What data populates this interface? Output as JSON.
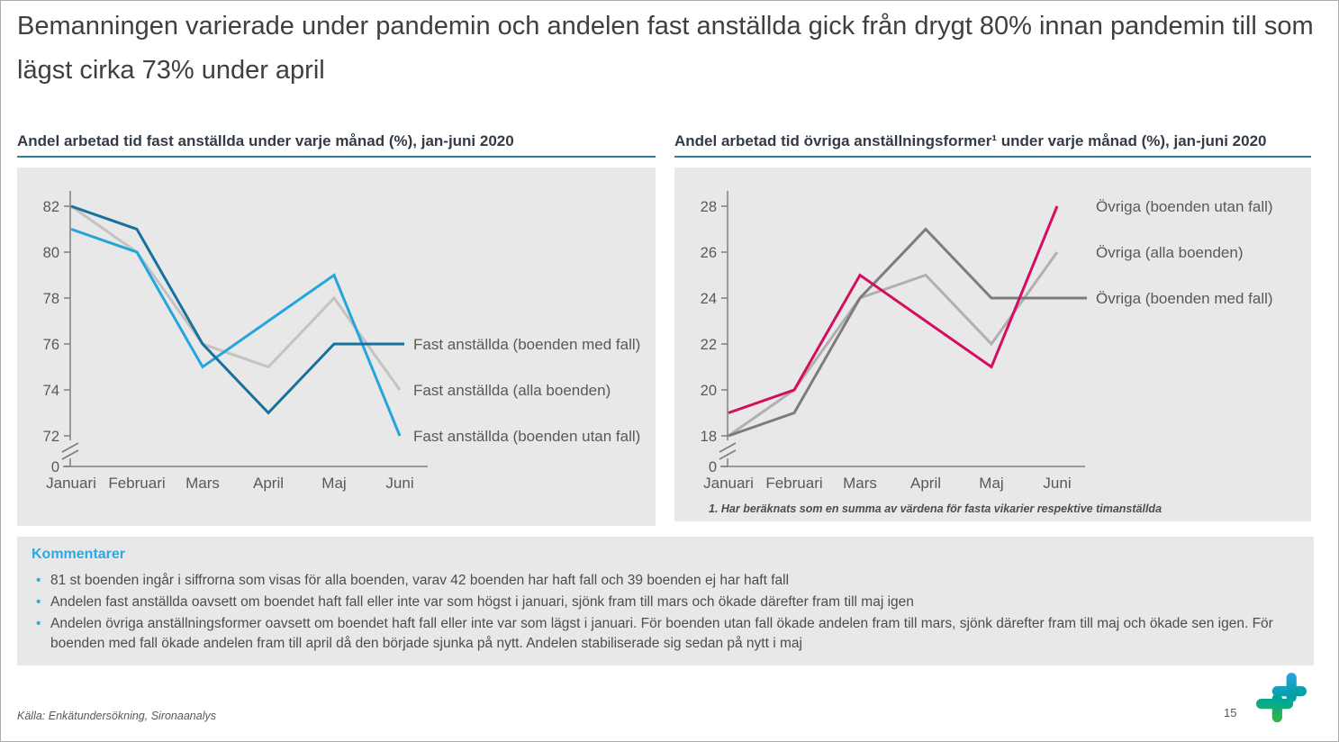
{
  "slide": {
    "title": "Bemanningen varierade under pandemin och andelen fast anställda gick från drygt 80% innan pandemin till som lägst cirka 73% under april",
    "source": "Källa: Enkätundersökning, Sironaanalys",
    "page_number": "15",
    "logo_icon": "sirona-plus-logo"
  },
  "colors": {
    "accent_cyan": "#29abe2",
    "header_underline": "#2e7f9c",
    "panel_bg": "#e8e8e8",
    "axis_gray": "#7f7f7f",
    "dark_blue": "#17719c",
    "light_blue": "#25a5dc",
    "light_gray_line": "#c3c3c3",
    "mid_gray_line": "#b0b0b0",
    "dark_gray_line": "#7c7c7c",
    "pink": "#d40d60"
  },
  "comments": {
    "heading": "Kommentarer",
    "bullets": [
      "81 st boenden ingår i siffrorna som visas för alla boenden, varav 42 boenden har haft fall och 39 boenden ej har haft fall",
      "Andelen fast anställda oavsett om boendet haft fall eller inte var som högst i januari, sjönk fram till mars och ökade därefter fram till maj igen",
      "Andelen övriga anställningsformer oavsett om boendet haft fall eller inte var som lägst i januari. För boenden utan fall ökade andelen fram till mars, sjönk därefter fram till maj och ökade sen igen. För boenden med fall ökade andelen fram till april då den började sjunka på nytt. Andelen stabiliserade sig sedan på nytt i maj"
    ]
  },
  "chart_data": [
    {
      "type": "line",
      "title": "Andel arbetad tid fast anställda under varje månad (%), jan-juni 2020",
      "categories": [
        "Januari",
        "Februari",
        "Mars",
        "April",
        "Maj",
        "Juni"
      ],
      "y_ticks": [
        82,
        80,
        78,
        76,
        74,
        72
      ],
      "y_baseline_label": "0",
      "y_axis_break": true,
      "grid": false,
      "legend_position": "right-of-line-ends",
      "series": [
        {
          "name": "Fast anställda (alla boenden)",
          "color": "#c3c3c3",
          "values": [
            82,
            80,
            76,
            75,
            78,
            74
          ]
        },
        {
          "name": "Fast anställda (boenden utan fall)",
          "color": "#25a5dc",
          "values": [
            81,
            80,
            75,
            77,
            79,
            72
          ]
        },
        {
          "name": "Fast anställda (boenden med fall)",
          "color": "#17719c",
          "values": [
            82,
            81,
            76,
            73,
            76,
            76
          ]
        }
      ]
    },
    {
      "type": "line",
      "title": "Andel arbetad tid övriga anställningsformer¹ under varje månad (%), jan-juni 2020",
      "footnote": "1. Har beräknats som en summa av värdena för fasta vikarier respektive timanställda",
      "categories": [
        "Januari",
        "Februari",
        "Mars",
        "April",
        "Maj",
        "Juni"
      ],
      "y_ticks": [
        28,
        26,
        24,
        22,
        20,
        18
      ],
      "y_baseline_label": "0",
      "y_axis_break": true,
      "grid": false,
      "legend_position": "right-of-line-ends",
      "series": [
        {
          "name": "Övriga (alla boenden)",
          "color": "#b0b0b0",
          "values": [
            18,
            20,
            24,
            25,
            22,
            26
          ]
        },
        {
          "name": "Övriga  (boenden med fall)",
          "color": "#7c7c7c",
          "values": [
            18,
            19,
            24,
            27,
            24,
            24
          ]
        },
        {
          "name": "Övriga (boenden utan fall)",
          "color": "#d40d60",
          "values": [
            19,
            20,
            25,
            23,
            21,
            28
          ]
        }
      ]
    }
  ]
}
